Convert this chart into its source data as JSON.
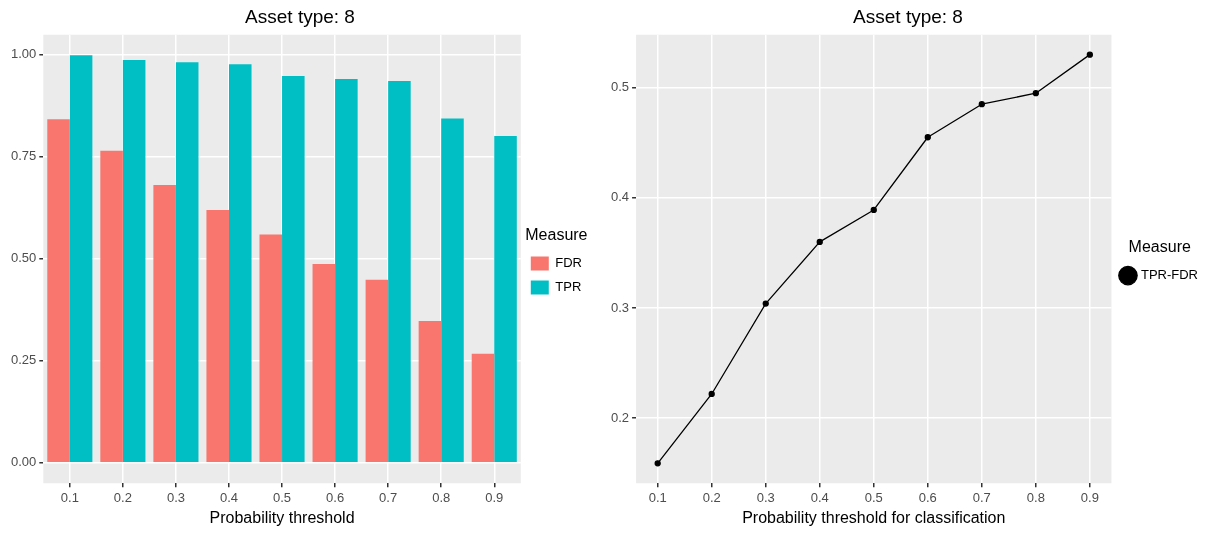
{
  "chart_data": [
    {
      "type": "bar",
      "title": "Asset type: 8",
      "xlabel": "Probability threshold",
      "legend_title": "Measure",
      "legend": "right",
      "grid": true,
      "categories": [
        "0.1",
        "0.2",
        "0.3",
        "0.4",
        "0.5",
        "0.6",
        "0.7",
        "0.8",
        "0.9"
      ],
      "series": [
        {
          "name": "FDR",
          "color": "#f8766d",
          "values": [
            0.841,
            0.764,
            0.68,
            0.619,
            0.559,
            0.487,
            0.448,
            0.347,
            0.267
          ]
        },
        {
          "name": "TPR",
          "color": "#00bfc4",
          "values": [
            0.998,
            0.986,
            0.981,
            0.976,
            0.947,
            0.94,
            0.935,
            0.843,
            0.8
          ]
        }
      ],
      "ylim": [
        -0.05,
        1.048
      ],
      "yticks": [
        {
          "value": 0,
          "label": "0.00"
        },
        {
          "value": 0.25,
          "label": "0.25"
        },
        {
          "value": 0.5,
          "label": "0.50"
        },
        {
          "value": 0.75,
          "label": "0.75"
        },
        {
          "value": 1,
          "label": "1.00"
        }
      ]
    },
    {
      "type": "line",
      "title": "Asset type: 8",
      "xlabel": "Probability threshold for classification",
      "legend_title": "Measure",
      "legend": "right",
      "grid": true,
      "marker": "circle",
      "line_style": "solid",
      "x": [
        0.1,
        0.2,
        0.3,
        0.4,
        0.5,
        0.6,
        0.7,
        0.8,
        0.9
      ],
      "series": [
        {
          "name": "TPR-FDR",
          "color": "#000000",
          "values": [
            0.159,
            0.222,
            0.304,
            0.36,
            0.389,
            0.455,
            0.485,
            0.495,
            0.53
          ]
        }
      ],
      "xlim": [
        0.06,
        0.94
      ],
      "xticks": [
        0.1,
        0.2,
        0.3,
        0.4,
        0.5,
        0.6,
        0.7,
        0.8,
        0.9
      ],
      "ylim": [
        0.141,
        0.548
      ],
      "yticks": [
        0.2,
        0.3,
        0.4,
        0.5
      ]
    }
  ]
}
